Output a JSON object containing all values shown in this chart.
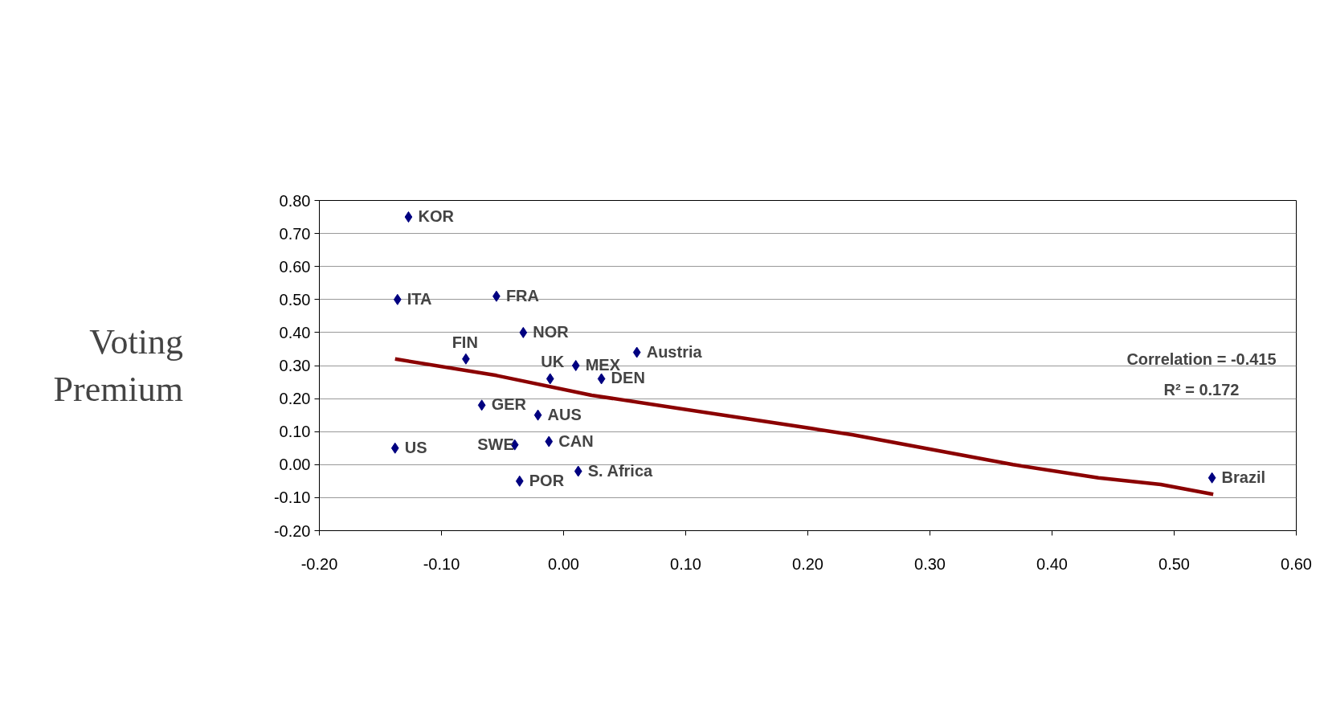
{
  "chart_data": {
    "type": "scatter",
    "ylabel": "Voting\nPremium",
    "xlim": [
      -0.2,
      0.6
    ],
    "ylim": [
      -0.2,
      0.8
    ],
    "xticks": [
      {
        "value": -0.2,
        "label": "-0.20"
      },
      {
        "value": -0.1,
        "label": "-0.10"
      },
      {
        "value": 0,
        "label": "0.00"
      },
      {
        "value": 0.1,
        "label": "0.10"
      },
      {
        "value": 0.2,
        "label": "0.20"
      },
      {
        "value": 0.3,
        "label": "0.30"
      },
      {
        "value": 0.4,
        "label": "0.40"
      },
      {
        "value": 0.5,
        "label": "0.50"
      },
      {
        "value": 0.6,
        "label": "0.60"
      }
    ],
    "yticks": [
      {
        "value": -0.2,
        "label": "-0.20"
      },
      {
        "value": -0.1,
        "label": "-0.10"
      },
      {
        "value": 0,
        "label": "0.00"
      },
      {
        "value": 0.1,
        "label": "0.10"
      },
      {
        "value": 0.2,
        "label": "0.20"
      },
      {
        "value": 0.3,
        "label": "0.30"
      },
      {
        "value": 0.4,
        "label": "0.40"
      },
      {
        "value": 0.5,
        "label": "0.50"
      },
      {
        "value": 0.6,
        "label": "0.60"
      },
      {
        "value": 0.7,
        "label": "0.70"
      },
      {
        "value": 0.8,
        "label": "0.80"
      }
    ],
    "grid": "y",
    "marker": "diamond",
    "series": [
      {
        "color": "#000080",
        "x": [
          -0.127,
          -0.136,
          -0.055,
          -0.033,
          -0.08,
          0.01,
          0.06,
          -0.011,
          0.031,
          -0.067,
          -0.021,
          -0.138,
          -0.04,
          -0.012,
          -0.036,
          0.012,
          0.531
        ],
        "values": [
          0.75,
          0.5,
          0.51,
          0.4,
          0.32,
          0.3,
          0.34,
          0.26,
          0.26,
          0.18,
          0.15,
          0.05,
          0.06,
          0.07,
          -0.05,
          -0.02,
          -0.04
        ]
      },
      {
        "type": "line",
        "marker": "none",
        "color": "#8b0000",
        "x": [
          -0.138,
          -0.055,
          0.023,
          0.202,
          0.237,
          0.368,
          0.438,
          0.489,
          0.532
        ],
        "values": [
          0.32,
          0.27,
          0.21,
          0.11,
          0.09,
          0.0,
          -0.04,
          -0.06,
          -0.09
        ]
      }
    ],
    "annotations": [
      {
        "text": "KOR",
        "x": -0.127,
        "y": 0.75
      },
      {
        "text": "ITA",
        "x": -0.136,
        "y": 0.5
      },
      {
        "text": "FRA",
        "x": -0.055,
        "y": 0.51
      },
      {
        "text": "NOR",
        "x": -0.033,
        "y": 0.4
      },
      {
        "text": "FIN",
        "x": -0.08,
        "y": 0.32
      },
      {
        "text": "MEX",
        "x": 0.01,
        "y": 0.3
      },
      {
        "text": "Austria",
        "x": 0.06,
        "y": 0.34
      },
      {
        "text": "UK",
        "x": -0.011,
        "y": 0.26
      },
      {
        "text": "DEN",
        "x": 0.031,
        "y": 0.26
      },
      {
        "text": "GER",
        "x": -0.067,
        "y": 0.18
      },
      {
        "text": "AUS",
        "x": -0.021,
        "y": 0.15
      },
      {
        "text": "US",
        "x": -0.138,
        "y": 0.05
      },
      {
        "text": "SWE",
        "x": -0.04,
        "y": 0.06
      },
      {
        "text": "CAN",
        "x": -0.012,
        "y": 0.07
      },
      {
        "text": "POR",
        "x": -0.036,
        "y": -0.05
      },
      {
        "text": "S. Africa",
        "x": 0.012,
        "y": -0.02
      },
      {
        "text": "Brazil",
        "x": 0.531,
        "y": -0.04
      },
      "Correlation = -0.415",
      "R² = 0.172"
    ]
  }
}
